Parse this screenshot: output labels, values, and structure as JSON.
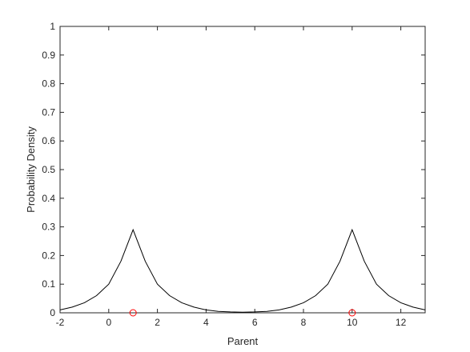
{
  "chart_data": {
    "type": "line",
    "xlabel": "Parent",
    "ylabel": "Probability Density",
    "xlim": [
      -2,
      13
    ],
    "xticks": [
      -2,
      0,
      2,
      4,
      6,
      8,
      10,
      12
    ],
    "ylim": [
      0,
      1
    ],
    "yticks": [
      0,
      0.1,
      0.2,
      0.3,
      0.4,
      0.5,
      0.6,
      0.7,
      0.8,
      0.9,
      1
    ],
    "grid": false,
    "series": [
      {
        "kind": "line",
        "color": "#000000",
        "x": [
          -2,
          -1.5,
          -1,
          -0.5,
          0,
          0.5,
          1,
          1.5,
          2,
          2.5,
          3,
          3.5,
          4,
          4.5,
          5,
          5.5,
          6,
          6.5,
          7,
          7.5,
          8,
          8.5,
          9,
          9.5,
          10,
          10.5,
          11,
          11.5,
          12,
          12.5,
          13
        ],
        "values": [
          0.01,
          0.02,
          0.035,
          0.06,
          0.1,
          0.18,
          0.29,
          0.18,
          0.1,
          0.06,
          0.035,
          0.02,
          0.01,
          0.005,
          0.003,
          0.002,
          0.003,
          0.005,
          0.01,
          0.02,
          0.035,
          0.06,
          0.1,
          0.18,
          0.29,
          0.18,
          0.1,
          0.06,
          0.035,
          0.02,
          0.01
        ]
      },
      {
        "kind": "marker",
        "color": "#ff0000",
        "x": [
          1,
          10
        ],
        "values": [
          0,
          0
        ]
      }
    ]
  }
}
